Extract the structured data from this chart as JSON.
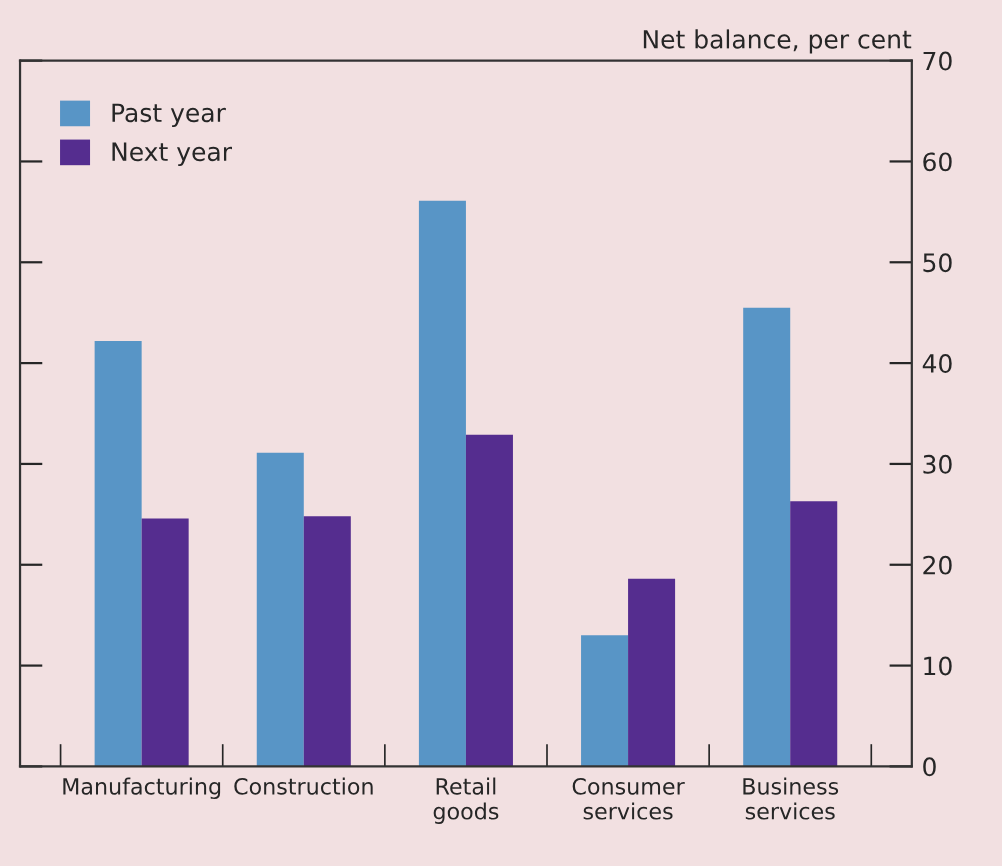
{
  "chart_data": {
    "type": "bar",
    "ylabel": "Net balance, per cent",
    "categories": [
      "Manufacturing",
      "Construction",
      "Retail\ngoods",
      "Consumer\nservices",
      "Business\nservices"
    ],
    "series": [
      {
        "name": "Past year",
        "color": "#5895c6",
        "values": [
          42.2,
          31.1,
          56.1,
          13.0,
          45.5
        ]
      },
      {
        "name": "Next year",
        "color": "#552d8f",
        "values": [
          24.6,
          24.8,
          32.9,
          18.6,
          26.3
        ]
      }
    ],
    "ylim": [
      0,
      70
    ],
    "yticks": [
      0,
      10,
      20,
      30,
      40,
      50,
      60,
      70
    ],
    "grid": false,
    "legend": "top left"
  }
}
